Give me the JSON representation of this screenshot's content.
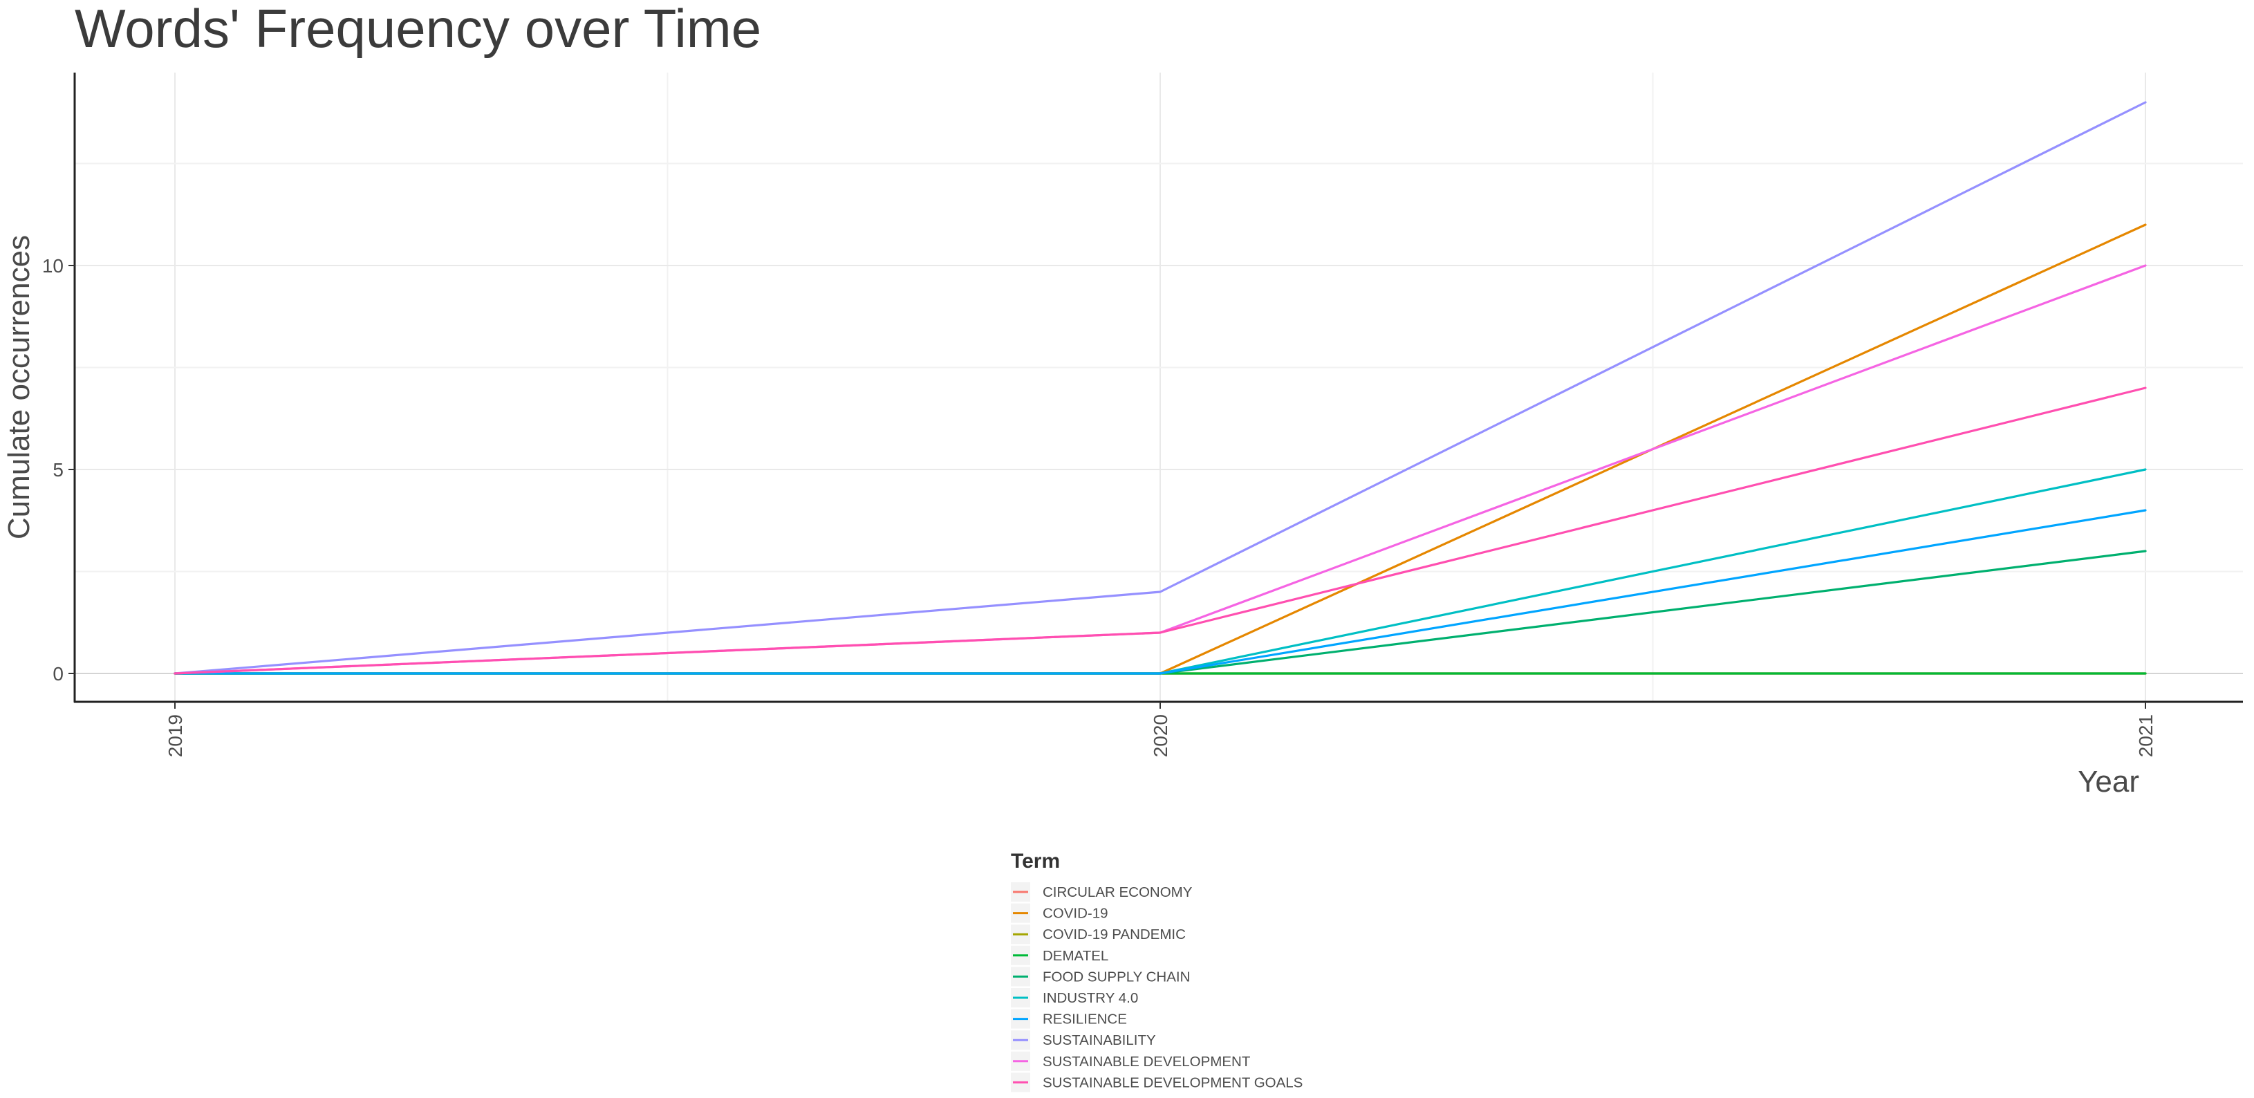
{
  "chart_data": {
    "type": "line",
    "title": "Words' Frequency over Time",
    "xlabel": "Year",
    "ylabel": "Cumulate occurrences",
    "x": [
      "2019",
      "2020",
      "2021"
    ],
    "xlim": [
      2019,
      2021
    ],
    "ylim": [
      0,
      14
    ],
    "y_ticks": [
      0,
      5,
      10
    ],
    "grid": true,
    "legend": {
      "title": "Term",
      "placement": "bottom"
    },
    "series": [
      {
        "name": "CIRCULAR ECONOMY",
        "color": "#F8766D",
        "values": [
          0,
          0,
          0
        ]
      },
      {
        "name": "COVID-19",
        "color": "#E58700",
        "values": [
          0,
          0,
          11
        ]
      },
      {
        "name": "COVID-19 PANDEMIC",
        "color": "#A3A500",
        "values": [
          0,
          0,
          0
        ]
      },
      {
        "name": "DEMATEL",
        "color": "#00BA38",
        "values": [
          0,
          0,
          0
        ]
      },
      {
        "name": "FOOD SUPPLY CHAIN",
        "color": "#00B06F",
        "values": [
          0,
          0,
          3
        ]
      },
      {
        "name": "INDUSTRY 4.0",
        "color": "#00BFC4",
        "values": [
          0,
          0,
          5
        ]
      },
      {
        "name": "RESILIENCE",
        "color": "#00A5FF",
        "values": [
          0,
          0,
          4
        ]
      },
      {
        "name": "SUSTAINABILITY",
        "color": "#9590FF",
        "values": [
          0,
          2,
          14
        ]
      },
      {
        "name": "SUSTAINABLE DEVELOPMENT",
        "color": "#F564E3",
        "values": [
          0,
          1,
          10
        ]
      },
      {
        "name": "SUSTAINABLE DEVELOPMENT GOALS",
        "color": "#FF4FB0",
        "values": [
          0,
          1,
          7
        ]
      }
    ]
  }
}
